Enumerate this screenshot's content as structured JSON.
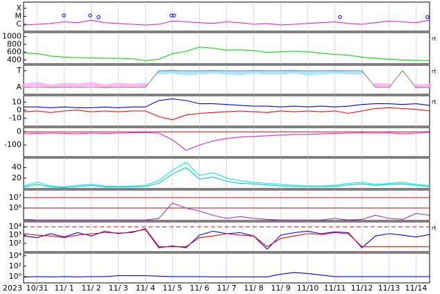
{
  "chart_data": [
    {
      "type": "line",
      "xlim": [
        -0.5,
        14.5
      ],
      "ylim": [
        0.13,
        3.78
      ],
      "yticks": [
        {
          "value": 3,
          "label": "X"
        },
        {
          "value": 2,
          "label": "M"
        },
        {
          "value": 1,
          "label": "C"
        }
      ],
      "x": [
        -0.5,
        0,
        0.5,
        1,
        1.5,
        2,
        2.5,
        3,
        3.5,
        4,
        4.5,
        5,
        5.5,
        6,
        6.5,
        7,
        7.5,
        8,
        8.5,
        9,
        9.5,
        10,
        10.5,
        11,
        11.5,
        12,
        12.5,
        13,
        13.5,
        14,
        14.5
      ],
      "series": [
        {
          "color": "#e020e0",
          "mode": "line",
          "values": [
            0.9,
            1.0,
            1.1,
            1.3,
            1.2,
            1.5,
            1.2,
            1.1,
            1.0,
            0.9,
            1.0,
            1.4,
            1.3,
            1.2,
            1.1,
            1.3,
            1.2,
            1.0,
            1.1,
            0.9,
            1.0,
            1.1,
            1.2,
            1.3,
            1.1,
            1.0,
            1.2,
            1.4,
            1.3,
            1.2,
            1.5
          ]
        },
        {
          "color": "#2020ff",
          "mode": "markers",
          "x": [
            0.99,
            1.96,
            2.27,
            4.96,
            5.06,
            11.19,
            14.42
          ],
          "values": [
            2.1,
            2.1,
            1.9,
            2.1,
            2.1,
            1.9,
            1.9
          ]
        }
      ]
    },
    {
      "type": "line",
      "xlim": [
        -0.5,
        14.5
      ],
      "ylim": [
        300,
        1100
      ],
      "yticks": [
        1000,
        800,
        600,
        400
      ],
      "right_label": "rt",
      "x": [
        -0.5,
        0,
        0.5,
        1,
        1.5,
        2,
        2.5,
        3,
        3.5,
        4,
        4.5,
        5,
        5.5,
        6,
        6.5,
        7,
        7.5,
        8,
        8.5,
        9,
        9.5,
        10,
        10.5,
        11,
        11.5,
        12,
        12.5,
        13,
        13.5,
        14,
        14.5
      ],
      "series": [
        {
          "color": "#00dd00",
          "mode": "line",
          "values": [
            580,
            560,
            500,
            470,
            460,
            450,
            440,
            440,
            430,
            380,
            420,
            560,
            620,
            730,
            700,
            650,
            660,
            640,
            590,
            610,
            620,
            610,
            570,
            540,
            520,
            470,
            440,
            420,
            400,
            390,
            380
          ]
        }
      ]
    },
    {
      "type": "line",
      "xlim": [
        -0.5,
        14.5
      ],
      "ylim": [
        -1.83,
        1.67
      ],
      "yticks": [
        {
          "value": 1,
          "label": "T"
        },
        {
          "value": -1,
          "label": "A"
        }
      ],
      "right_label": "rt",
      "x": [
        -0.5,
        0,
        0.5,
        1,
        1.5,
        2,
        2.5,
        3,
        3.5,
        4,
        4.5,
        5,
        5.5,
        6,
        6.5,
        7,
        7.5,
        8,
        8.5,
        9,
        9.5,
        10,
        10.5,
        11,
        11.5,
        12,
        12.5,
        13,
        13.5,
        14,
        14.5
      ],
      "series": [
        {
          "color": "#ffaaee",
          "mode": "band",
          "values": [
            -0.8,
            -0.6,
            -0.9,
            -0.7,
            -0.8,
            -0.6,
            -0.9,
            -0.7,
            -0.8,
            -0.7,
            null,
            null,
            null,
            null,
            null,
            null,
            null,
            null,
            null,
            null,
            null,
            null,
            null,
            null,
            null,
            null,
            -0.7,
            -0.8,
            null,
            -0.9,
            -0.8
          ]
        },
        {
          "color": "#99ddff",
          "mode": "band",
          "values": [
            null,
            null,
            null,
            null,
            null,
            null,
            null,
            null,
            null,
            null,
            0.8,
            0.9,
            0.7,
            0.8,
            0.9,
            0.8,
            0.7,
            0.9,
            0.8,
            0.8,
            0.9,
            0.7,
            0.8,
            0.9,
            0.8,
            0.8,
            null,
            null,
            0.8,
            null,
            null
          ]
        },
        {
          "color": "#888888",
          "mode": "line",
          "values": [
            -1,
            -1,
            -1,
            -1,
            -1,
            -1,
            -1,
            -1,
            -1,
            -1,
            1,
            1,
            1,
            1,
            1,
            1,
            1,
            1,
            1,
            1,
            1,
            1,
            1,
            1,
            1,
            1,
            -1,
            -1,
            1,
            -1,
            -1
          ]
        }
      ]
    },
    {
      "type": "line",
      "xlim": [
        -0.5,
        14.5
      ],
      "ylim": [
        -20,
        18
      ],
      "yticks": [
        10,
        0,
        -10
      ],
      "right_label": "rt",
      "x": [
        -0.5,
        0,
        0.5,
        1,
        1.5,
        2,
        2.5,
        3,
        3.5,
        4,
        4.5,
        5,
        5.5,
        6,
        6.5,
        7,
        7.5,
        8,
        8.5,
        9,
        9.5,
        10,
        10.5,
        11,
        11.5,
        12,
        12.5,
        13,
        13.5,
        14,
        14.5
      ],
      "series": [
        {
          "color": "#0000ff",
          "mode": "line",
          "values": [
            4,
            4,
            3,
            4,
            3,
            3,
            4,
            3,
            4,
            4,
            12,
            14,
            12,
            8,
            8,
            7,
            6,
            5,
            5,
            4,
            5,
            4,
            5,
            4,
            5,
            7,
            8,
            8,
            7,
            8,
            6
          ]
        },
        {
          "color": "#ff0000",
          "mode": "line",
          "values": [
            -2,
            -1,
            -3,
            -1,
            0,
            -2,
            -1,
            -2,
            -1,
            -1,
            -8,
            -12,
            -6,
            -4,
            -3,
            -2,
            -1,
            -2,
            -3,
            -1,
            -2,
            -1,
            -2,
            -1,
            -4,
            -1,
            2,
            3,
            2,
            1,
            -1
          ]
        }
      ]
    },
    {
      "type": "line",
      "xlim": [
        -0.5,
        14.5
      ],
      "ylim": [
        -189,
        32
      ],
      "yticks": [
        0,
        -100
      ],
      "hlines": [
        {
          "value": 0,
          "color": "#dd0000",
          "dash": false
        }
      ],
      "x": [
        -0.5,
        0,
        0.5,
        1,
        1.5,
        2,
        2.5,
        3,
        3.5,
        4,
        4.5,
        5,
        5.5,
        6,
        6.5,
        7,
        7.5,
        8,
        8.5,
        9,
        9.5,
        10,
        10.5,
        11,
        11.5,
        12,
        12.5,
        13,
        13.5,
        14,
        14.5
      ],
      "series": [
        {
          "color": "#e020e0",
          "mode": "line",
          "values": [
            -15,
            -12,
            -10,
            -12,
            -15,
            -10,
            -12,
            -10,
            -8,
            -5,
            -10,
            -60,
            -140,
            -100,
            -70,
            -50,
            -40,
            -35,
            -30,
            -25,
            -20,
            -20,
            -15,
            -12,
            -10,
            -8,
            -10,
            -8,
            -15,
            -10,
            -5
          ]
        }
      ]
    },
    {
      "type": "line",
      "xlim": [
        -0.5,
        14.5
      ],
      "ylim": [
        0,
        58
      ],
      "yticks": [
        40,
        20
      ],
      "x": [
        -0.5,
        0,
        0.5,
        1,
        1.5,
        2,
        2.5,
        3,
        3.5,
        4,
        4.5,
        5,
        5.5,
        6,
        6.5,
        7,
        7.5,
        8,
        8.5,
        9,
        9.5,
        10,
        10.5,
        11,
        11.5,
        12,
        12.5,
        13,
        13.5,
        14,
        14.5
      ],
      "series": [
        {
          "color": "#00eeee",
          "mode": "line",
          "values": [
            5,
            12,
            5,
            3,
            6,
            8,
            5,
            4,
            5,
            6,
            15,
            35,
            50,
            25,
            30,
            20,
            15,
            12,
            10,
            8,
            6,
            5,
            5,
            6,
            10,
            12,
            8,
            10,
            12,
            8,
            6
          ]
        },
        {
          "color": "#00cccc",
          "mode": "line",
          "values": [
            3,
            8,
            3,
            2,
            4,
            6,
            3,
            3,
            3,
            4,
            10,
            28,
            40,
            18,
            22,
            14,
            10,
            9,
            7,
            5,
            4,
            4,
            4,
            4,
            7,
            9,
            6,
            8,
            9,
            6,
            4
          ]
        }
      ]
    },
    {
      "type": "line",
      "log": true,
      "xlim": [
        -0.5,
        14.5
      ],
      "ylim": [
        63000,
        53700000
      ],
      "yticks": [
        {
          "value": 10000000,
          "label": "10⁷"
        },
        {
          "value": 1000000,
          "label": "10⁶"
        }
      ],
      "hlines": [
        {
          "value": 10000000,
          "color": "#dd0000",
          "dash": false
        },
        {
          "value": 1000000,
          "color": "#dd0000",
          "dash": false
        }
      ],
      "x": [
        -0.5,
        0,
        0.5,
        1,
        1.5,
        2,
        2.5,
        3,
        3.5,
        4,
        4.5,
        5,
        5.5,
        6,
        6.5,
        7,
        7.5,
        8,
        8.5,
        9,
        9.5,
        10,
        10.5,
        11,
        11.5,
        12,
        12.5,
        13,
        13.5,
        14,
        14.5
      ],
      "series": [
        {
          "color": "#9933cc",
          "mode": "line",
          "values": [
            80000,
            70000,
            70000,
            70000,
            70000,
            70000,
            70000,
            70000,
            70000,
            70000,
            100000,
            3000000,
            1000000,
            500000,
            200000,
            100000,
            150000,
            100000,
            80000,
            70000,
            70000,
            70000,
            70000,
            100000,
            70000,
            80000,
            200000,
            100000,
            80000,
            300000,
            200000
          ]
        }
      ]
    },
    {
      "type": "line",
      "log": true,
      "xlim": [
        -0.5,
        14.5
      ],
      "ylim": [
        10,
        40000
      ],
      "right_label": "rt",
      "yticks": [
        {
          "value": 10000,
          "label": "10⁴"
        },
        {
          "value": 1000,
          "label": "10³"
        },
        {
          "value": 100,
          "label": "10²"
        }
      ],
      "hlines": [
        {
          "value": 10000,
          "color": "#dd0000",
          "dash": true
        }
      ],
      "x": [
        -0.5,
        0,
        0.5,
        1,
        1.5,
        2,
        2.5,
        3,
        3.5,
        4,
        4.5,
        5,
        5.5,
        6,
        6.5,
        7,
        7.5,
        8,
        8.5,
        9,
        9.5,
        10,
        10.5,
        11,
        11.5,
        12,
        12.5,
        13,
        13.5,
        14,
        14.5
      ],
      "series": [
        {
          "color": "#0000ff",
          "mode": "line",
          "values": [
            800,
            500,
            1500,
            600,
            2000,
            800,
            3000,
            1500,
            2500,
            5000,
            30,
            50,
            30,
            1000,
            3000,
            1500,
            2000,
            800,
            20,
            1000,
            2000,
            3000,
            1500,
            2500,
            2000,
            30,
            800,
            1500,
            1000,
            600,
            1200
          ]
        },
        {
          "color": "#ff0000",
          "mode": "line",
          "values": [
            1500,
            1000,
            800,
            500,
            1000,
            1500,
            2000,
            1800,
            2000,
            6000,
            40,
            40,
            40,
            500,
            800,
            1500,
            1000,
            800,
            40,
            400,
            800,
            1500,
            1200,
            2000,
            1500,
            40,
            40,
            40,
            40,
            40,
            40
          ]
        }
      ]
    },
    {
      "type": "line",
      "log": true,
      "xlim": [
        -0.5,
        14.5
      ],
      "ylim": [
        0.063,
        31600
      ],
      "yticks": [
        {
          "value": 10000,
          "label": "10⁴"
        },
        {
          "value": 100,
          "label": "10²"
        },
        {
          "value": 1,
          "label": "10⁰"
        }
      ],
      "x_label": "2023",
      "xticks": [
        {
          "value": 0,
          "label": "10/31"
        },
        {
          "value": 1,
          "label": "11/ 1"
        },
        {
          "value": 2,
          "label": "11/ 2"
        },
        {
          "value": 3,
          "label": "11/ 3"
        },
        {
          "value": 4,
          "label": "11/ 4"
        },
        {
          "value": 5,
          "label": "11/ 5"
        },
        {
          "value": 6,
          "label": "11/ 6"
        },
        {
          "value": 7,
          "label": "11/ 7"
        },
        {
          "value": 8,
          "label": "11/ 8"
        },
        {
          "value": 9,
          "label": "11/ 9"
        },
        {
          "value": 10,
          "label": "11/10"
        },
        {
          "value": 11,
          "label": "11/11"
        },
        {
          "value": 12,
          "label": "11/12"
        },
        {
          "value": 13,
          "label": "11/13"
        },
        {
          "value": 14,
          "label": "11/14"
        }
      ],
      "x": [
        -0.5,
        0,
        0.5,
        1,
        1.5,
        2,
        2.5,
        3,
        3.5,
        4,
        4.5,
        5,
        5.5,
        6,
        6.5,
        7,
        7.5,
        8,
        8.5,
        9,
        9.5,
        10,
        10.5,
        11,
        11.5,
        12,
        12.5,
        13,
        13.5,
        14,
        14.5
      ],
      "series": [
        {
          "color": "#0000ff",
          "mode": "line",
          "values": [
            0.8,
            1,
            0.9,
            1,
            0.9,
            1,
            1,
            1.5,
            1.5,
            1.5,
            1.2,
            1,
            1,
            1,
            0.9,
            0.9,
            0.9,
            0.9,
            0.9,
            3,
            6,
            4,
            2,
            1,
            1,
            1,
            1,
            1,
            1,
            1,
            1
          ]
        }
      ]
    }
  ]
}
